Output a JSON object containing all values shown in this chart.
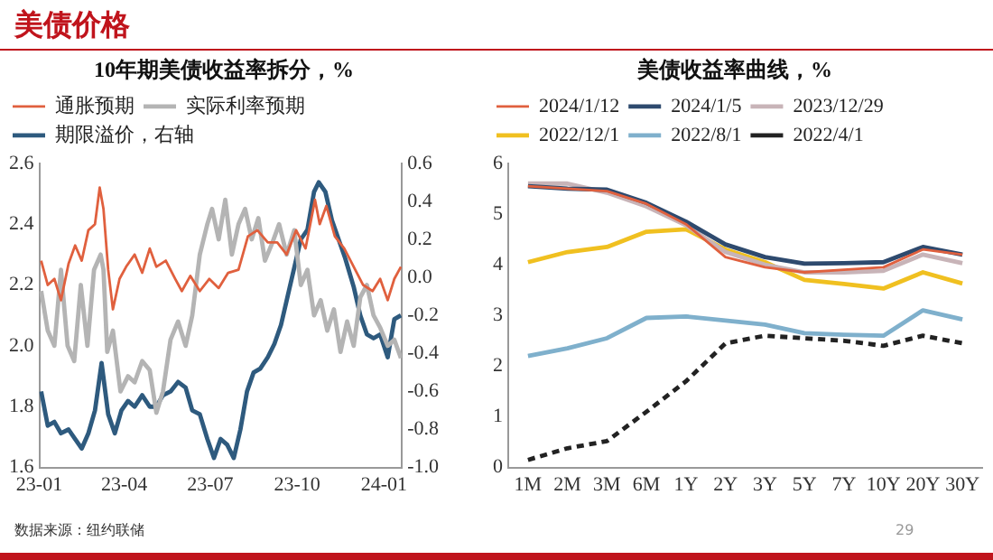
{
  "chart_data": [
    {
      "type": "other",
      "title": "美债价格",
      "annotations": [
        "数据来源：纽约联储",
        "29"
      ]
    },
    {
      "type": "line",
      "title": "10年期美债收益率拆分，%",
      "legend": "top",
      "xlim": [
        "2023-01-01",
        "2024-01-20"
      ],
      "xticks": [
        {
          "value": "2023-01-01",
          "label": "23-01"
        },
        {
          "value": "2023-04-01",
          "label": "23-04"
        },
        {
          "value": "2023-07-01",
          "label": "23-07"
        },
        {
          "value": "2023-10-01",
          "label": "23-10"
        },
        {
          "value": "2024-01-01",
          "label": "24-01"
        }
      ],
      "ylim": [
        1.6,
        2.6
      ],
      "yticks": [
        1.6,
        1.8,
        {
          "value": 2,
          "label": "2.0"
        },
        2.2,
        2.4,
        2.6
      ],
      "y2lim": [
        -1,
        0.6
      ],
      "y2ticks": [
        {
          "value": -1,
          "label": "-1.0"
        },
        -0.8,
        -0.6,
        -0.4,
        -0.2,
        {
          "value": 0,
          "label": "0.0"
        },
        0.2,
        0.4,
        0.6
      ],
      "series": [
        {
          "name": "通胀预期",
          "color": "#e0603e",
          "x": [
            "2023-01-03",
            "2023-01-10",
            "2023-01-17",
            "2023-01-24",
            "2023-02-01",
            "2023-02-08",
            "2023-02-15",
            "2023-02-22",
            "2023-03-01",
            "2023-03-06",
            "2023-03-10",
            "2023-03-15",
            "2023-03-20",
            "2023-03-27",
            "2023-04-03",
            "2023-04-12",
            "2023-04-20",
            "2023-04-28",
            "2023-05-05",
            "2023-05-15",
            "2023-05-25",
            "2023-06-01",
            "2023-06-10",
            "2023-06-20",
            "2023-06-30",
            "2023-07-10",
            "2023-07-20",
            "2023-07-31",
            "2023-08-10",
            "2023-08-20",
            "2023-08-31",
            "2023-09-10",
            "2023-09-20",
            "2023-09-30",
            "2023-10-10",
            "2023-10-20",
            "2023-10-25",
            "2023-11-01",
            "2023-11-10",
            "2023-11-20",
            "2023-11-30",
            "2023-12-10",
            "2023-12-20",
            "2023-12-28",
            "2024-01-05",
            "2024-01-12",
            "2024-01-19"
          ],
          "values": [
            2.28,
            2.2,
            2.22,
            2.15,
            2.27,
            2.33,
            2.28,
            2.38,
            2.4,
            2.52,
            2.45,
            2.25,
            2.12,
            2.22,
            2.26,
            2.3,
            2.24,
            2.32,
            2.26,
            2.28,
            2.22,
            2.18,
            2.23,
            2.18,
            2.22,
            2.19,
            2.24,
            2.25,
            2.36,
            2.38,
            2.34,
            2.34,
            2.3,
            2.38,
            2.32,
            2.48,
            2.4,
            2.46,
            2.36,
            2.32,
            2.26,
            2.2,
            2.18,
            2.22,
            2.15,
            2.22,
            2.26
          ]
        },
        {
          "name": "实际利率预期",
          "color": "#b4b4b4",
          "x": [
            "2023-01-03",
            "2023-01-10",
            "2023-01-17",
            "2023-01-24",
            "2023-01-31",
            "2023-02-07",
            "2023-02-14",
            "2023-02-21",
            "2023-02-28",
            "2023-03-07",
            "2023-03-10",
            "2023-03-14",
            "2023-03-20",
            "2023-03-28",
            "2023-04-05",
            "2023-04-12",
            "2023-04-20",
            "2023-04-28",
            "2023-05-05",
            "2023-05-12",
            "2023-05-20",
            "2023-05-28",
            "2023-06-05",
            "2023-06-12",
            "2023-06-20",
            "2023-06-28",
            "2023-07-03",
            "2023-07-10",
            "2023-07-17",
            "2023-07-24",
            "2023-07-31",
            "2023-08-07",
            "2023-08-14",
            "2023-08-21",
            "2023-08-28",
            "2023-09-05",
            "2023-09-12",
            "2023-09-20",
            "2023-09-28",
            "2023-10-05",
            "2023-10-12",
            "2023-10-19",
            "2023-10-26",
            "2023-11-02",
            "2023-11-09",
            "2023-11-16",
            "2023-11-23",
            "2023-11-30",
            "2023-12-07",
            "2023-12-14",
            "2023-12-21",
            "2023-12-28",
            "2024-01-05",
            "2024-01-12",
            "2024-01-19"
          ],
          "values": [
            2.18,
            2.05,
            2.0,
            2.25,
            2.0,
            1.95,
            2.2,
            2.0,
            2.25,
            2.3,
            2.25,
            1.98,
            2.05,
            1.85,
            1.9,
            1.88,
            1.95,
            1.92,
            1.78,
            1.85,
            2.02,
            2.08,
            2.0,
            2.1,
            2.3,
            2.4,
            2.45,
            2.35,
            2.48,
            2.3,
            2.4,
            2.45,
            2.35,
            2.42,
            2.28,
            2.34,
            2.4,
            2.3,
            2.38,
            2.2,
            2.25,
            2.1,
            2.15,
            2.05,
            2.12,
            1.98,
            2.08,
            2.0,
            2.16,
            2.2,
            2.1,
            2.06,
            2.0,
            2.02,
            1.96
          ]
        },
        {
          "name": "期限溢价，右轴",
          "color": "#2e5a7e",
          "axis": "y2",
          "x": [
            "2023-01-03",
            "2023-01-10",
            "2023-01-17",
            "2023-01-24",
            "2023-02-01",
            "2023-02-08",
            "2023-02-15",
            "2023-02-22",
            "2023-03-01",
            "2023-03-08",
            "2023-03-15",
            "2023-03-22",
            "2023-03-29",
            "2023-04-05",
            "2023-04-12",
            "2023-04-20",
            "2023-04-28",
            "2023-05-05",
            "2023-05-12",
            "2023-05-20",
            "2023-05-28",
            "2023-06-05",
            "2023-06-12",
            "2023-06-20",
            "2023-06-28",
            "2023-07-05",
            "2023-07-12",
            "2023-07-19",
            "2023-07-26",
            "2023-08-02",
            "2023-08-09",
            "2023-08-16",
            "2023-08-23",
            "2023-08-31",
            "2023-09-07",
            "2023-09-14",
            "2023-09-21",
            "2023-09-28",
            "2023-10-05",
            "2023-10-12",
            "2023-10-19",
            "2023-10-24",
            "2023-10-31",
            "2023-11-07",
            "2023-11-14",
            "2023-11-21",
            "2023-11-30",
            "2023-12-07",
            "2023-12-14",
            "2023-12-21",
            "2023-12-28",
            "2024-01-05",
            "2024-01-12",
            "2024-01-19"
          ],
          "values": [
            -0.6,
            -0.78,
            -0.76,
            -0.82,
            -0.8,
            -0.85,
            -0.9,
            -0.82,
            -0.7,
            -0.45,
            -0.72,
            -0.82,
            -0.7,
            -0.65,
            -0.68,
            -0.62,
            -0.68,
            -0.68,
            -0.62,
            -0.6,
            -0.55,
            -0.58,
            -0.7,
            -0.72,
            -0.85,
            -0.95,
            -0.85,
            -0.88,
            -0.95,
            -0.8,
            -0.6,
            -0.5,
            -0.48,
            -0.42,
            -0.35,
            -0.25,
            -0.1,
            0.05,
            0.2,
            0.25,
            0.45,
            0.5,
            0.45,
            0.3,
            0.2,
            0.1,
            -0.05,
            -0.2,
            -0.3,
            -0.32,
            -0.3,
            -0.42,
            -0.22,
            -0.2
          ]
        }
      ]
    },
    {
      "type": "line",
      "title": "美债收益率曲线，%",
      "legend": "top",
      "categories": [
        "1M",
        "2M",
        "3M",
        "6M",
        "1Y",
        "2Y",
        "3Y",
        "5Y",
        "7Y",
        "10Y",
        "20Y",
        "30Y"
      ],
      "ylim": [
        0,
        6
      ],
      "yticks": [
        0,
        1,
        2,
        3,
        4,
        5,
        6
      ],
      "series": [
        {
          "name": "2024/1/12",
          "color": "#e0603e",
          "values": [
            5.55,
            5.5,
            5.45,
            5.2,
            4.8,
            4.15,
            3.95,
            3.85,
            3.9,
            3.95,
            4.3,
            4.2
          ]
        },
        {
          "name": "2024/1/5",
          "color": "#2e4a6e",
          "values": [
            5.55,
            5.5,
            5.48,
            5.22,
            4.85,
            4.4,
            4.15,
            4.02,
            4.03,
            4.05,
            4.35,
            4.2
          ]
        },
        {
          "name": "2023/12/29",
          "color": "#c8b4b8",
          "values": [
            5.6,
            5.6,
            5.42,
            5.15,
            4.78,
            4.25,
            4.0,
            3.85,
            3.85,
            3.88,
            4.2,
            4.03
          ]
        },
        {
          "name": "2022/12/1",
          "color": "#f0c020",
          "values": [
            4.05,
            4.25,
            4.35,
            4.65,
            4.7,
            4.3,
            4.05,
            3.7,
            3.62,
            3.53,
            3.85,
            3.63
          ]
        },
        {
          "name": "2022/8/1",
          "color": "#7fb0cc",
          "values": [
            2.2,
            2.35,
            2.55,
            2.95,
            2.98,
            2.9,
            2.82,
            2.65,
            2.62,
            2.6,
            3.1,
            2.92
          ]
        },
        {
          "name": "2022/4/1",
          "color": "#222222",
          "line_style": "dashed",
          "values": [
            0.15,
            0.38,
            0.52,
            1.1,
            1.7,
            2.45,
            2.6,
            2.55,
            2.5,
            2.4,
            2.6,
            2.45
          ]
        }
      ]
    }
  ]
}
